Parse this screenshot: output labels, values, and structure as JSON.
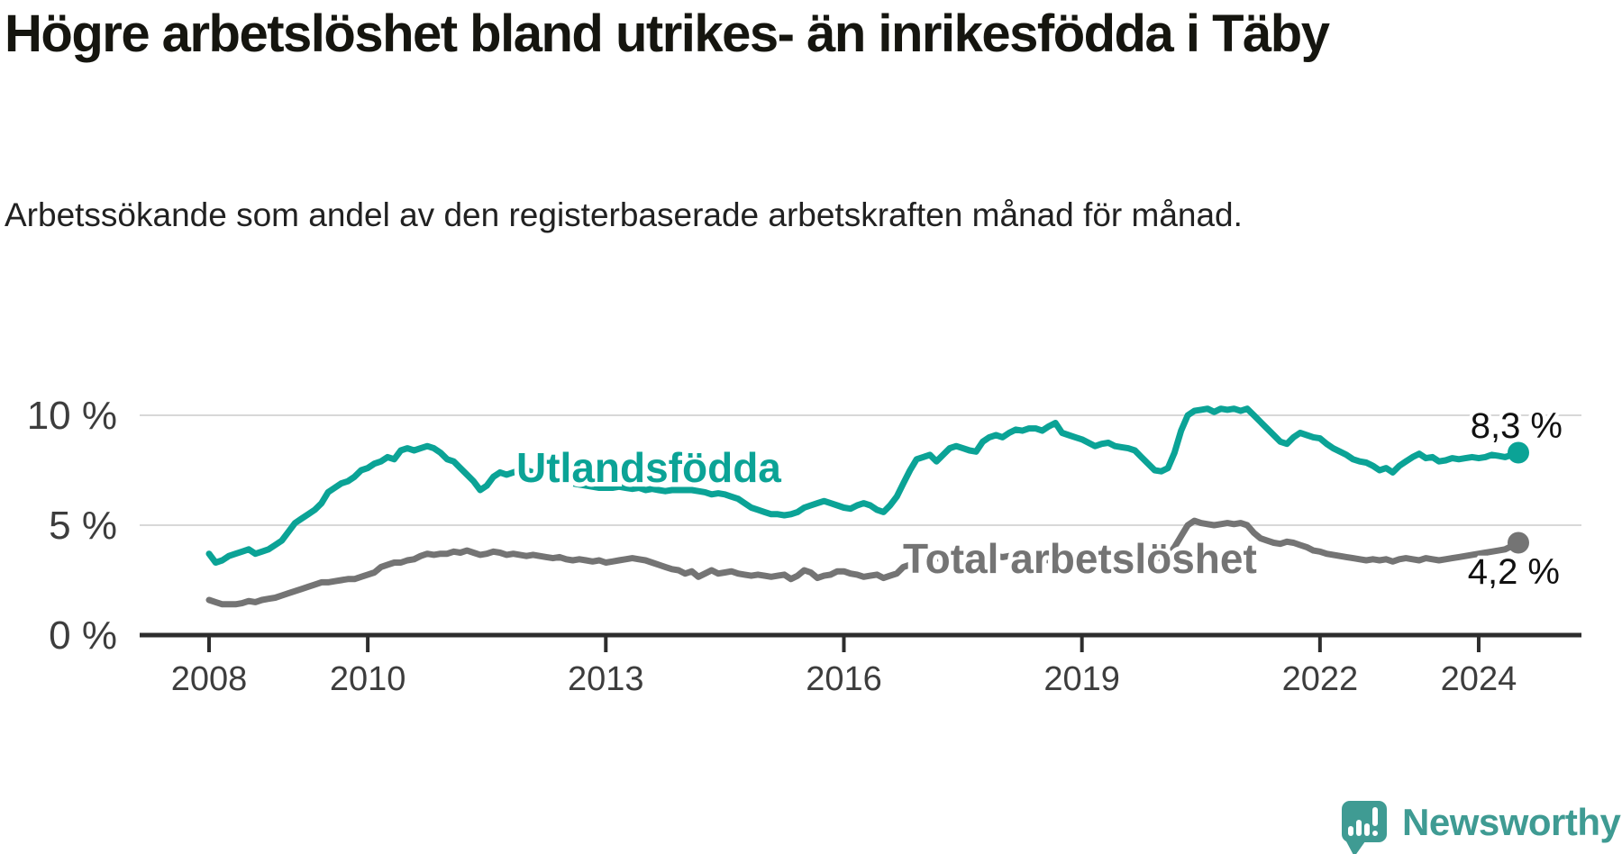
{
  "header": {
    "title": "Högre arbetslöshet bland utrikes- än inrikesfödda i Täby",
    "subtitle": "Arbetssökande som andel av den registerbaserade arbetskraften månad för månad."
  },
  "footer": {
    "brand": "Newsworthy"
  },
  "colors": {
    "foreign_born_line": "#0ba396",
    "total_line": "#747474",
    "axis": "#2d2d2d",
    "gridline": "#d8d8d8",
    "tick_label": "#3d3d3d",
    "value_label": "#111111",
    "logo": "#3f9b93"
  },
  "chart_data": {
    "type": "line",
    "title": "Högre arbetslöshet bland utrikes- än inrikesfödda i Täby",
    "subtitle": "Arbetssökande som andel av den registerbaserade arbetskraften månad för månad.",
    "xlabel": "",
    "ylabel": "",
    "grid": "horizontal",
    "legend_position": "inline",
    "x_start_year": 2008,
    "x_start_month": 1,
    "x_interval": "monthly",
    "x_ticks": [
      {
        "year": 2008,
        "label": "2008"
      },
      {
        "year": 2010,
        "label": "2010"
      },
      {
        "year": 2013,
        "label": "2013"
      },
      {
        "year": 2016,
        "label": "2016"
      },
      {
        "year": 2019,
        "label": "2019"
      },
      {
        "year": 2022,
        "label": "2022"
      },
      {
        "year": 2024,
        "label": "2024"
      }
    ],
    "y_ticks": [
      {
        "value": 0,
        "label": "0 %"
      },
      {
        "value": 5,
        "label": "5 %"
      },
      {
        "value": 10,
        "label": "10 %"
      }
    ],
    "ylim": [
      0,
      13.3
    ],
    "series": [
      {
        "name": "Utlandsfödda",
        "color": "#0ba396",
        "end_label": "8,3 %",
        "end_value": 8.3,
        "values": [
          3.7,
          3.3,
          3.4,
          3.6,
          3.7,
          3.8,
          3.9,
          3.7,
          3.8,
          3.9,
          4.1,
          4.3,
          4.7,
          5.1,
          5.3,
          5.5,
          5.7,
          6.0,
          6.5,
          6.7,
          6.9,
          7.0,
          7.2,
          7.5,
          7.6,
          7.8,
          7.9,
          8.1,
          8.0,
          8.4,
          8.5,
          8.4,
          8.5,
          8.6,
          8.5,
          8.3,
          8.0,
          7.9,
          7.6,
          7.3,
          7.0,
          6.6,
          6.8,
          7.2,
          7.4,
          7.3,
          7.4,
          7.5,
          7.5,
          7.4,
          7.3,
          7.2,
          7.1,
          7.0,
          6.95,
          6.9,
          6.85,
          6.8,
          6.75,
          6.7,
          6.7,
          6.7,
          6.75,
          6.7,
          6.65,
          6.7,
          6.6,
          6.65,
          6.6,
          6.55,
          6.6,
          6.6,
          6.6,
          6.6,
          6.55,
          6.5,
          6.4,
          6.45,
          6.4,
          6.3,
          6.2,
          6.0,
          5.8,
          5.7,
          5.6,
          5.5,
          5.5,
          5.45,
          5.5,
          5.6,
          5.8,
          5.9,
          6.0,
          6.1,
          6.0,
          5.9,
          5.8,
          5.75,
          5.9,
          6.0,
          5.9,
          5.7,
          5.6,
          5.9,
          6.3,
          6.9,
          7.5,
          8.0,
          8.1,
          8.2,
          7.9,
          8.2,
          8.5,
          8.6,
          8.5,
          8.4,
          8.35,
          8.8,
          9.0,
          9.1,
          9.0,
          9.2,
          9.35,
          9.3,
          9.4,
          9.4,
          9.3,
          9.5,
          9.65,
          9.2,
          9.1,
          9.0,
          8.9,
          8.75,
          8.6,
          8.7,
          8.75,
          8.6,
          8.55,
          8.5,
          8.4,
          8.1,
          7.8,
          7.5,
          7.45,
          7.6,
          8.3,
          9.3,
          10.0,
          10.2,
          10.25,
          10.3,
          10.15,
          10.3,
          10.25,
          10.3,
          10.2,
          10.3,
          10.0,
          9.7,
          9.4,
          9.1,
          8.8,
          8.7,
          9.0,
          9.2,
          9.1,
          9.0,
          8.95,
          8.7,
          8.5,
          8.35,
          8.2,
          8.0,
          7.9,
          7.85,
          7.7,
          7.5,
          7.6,
          7.4,
          7.7,
          7.9,
          8.1,
          8.25,
          8.05,
          8.1,
          7.9,
          7.95,
          8.05,
          8.0,
          8.05,
          8.1,
          8.05,
          8.1,
          8.2,
          8.15,
          8.1,
          8.2,
          8.3
        ]
      },
      {
        "name": "Total arbetslöshet",
        "color": "#747474",
        "end_label": "4,2 %",
        "end_value": 4.2,
        "values": [
          1.6,
          1.5,
          1.4,
          1.4,
          1.4,
          1.45,
          1.55,
          1.5,
          1.6,
          1.65,
          1.7,
          1.8,
          1.9,
          2.0,
          2.1,
          2.2,
          2.3,
          2.4,
          2.4,
          2.45,
          2.5,
          2.55,
          2.55,
          2.65,
          2.75,
          2.85,
          3.1,
          3.2,
          3.3,
          3.3,
          3.4,
          3.45,
          3.6,
          3.7,
          3.65,
          3.7,
          3.7,
          3.8,
          3.75,
          3.85,
          3.75,
          3.65,
          3.7,
          3.8,
          3.75,
          3.65,
          3.7,
          3.65,
          3.6,
          3.65,
          3.6,
          3.55,
          3.5,
          3.55,
          3.45,
          3.4,
          3.45,
          3.4,
          3.35,
          3.4,
          3.3,
          3.35,
          3.4,
          3.45,
          3.5,
          3.45,
          3.4,
          3.3,
          3.2,
          3.1,
          3.0,
          2.95,
          2.8,
          2.9,
          2.65,
          2.8,
          2.95,
          2.8,
          2.85,
          2.9,
          2.8,
          2.75,
          2.7,
          2.75,
          2.7,
          2.65,
          2.7,
          2.75,
          2.55,
          2.7,
          2.95,
          2.85,
          2.6,
          2.7,
          2.75,
          2.9,
          2.9,
          2.8,
          2.75,
          2.65,
          2.7,
          2.75,
          2.6,
          2.7,
          2.8,
          3.1,
          3.2,
          3.3,
          3.4,
          3.45,
          3.5,
          3.45,
          3.5,
          3.5,
          3.45,
          3.4,
          3.45,
          3.5,
          3.55,
          3.6,
          3.55,
          3.6,
          3.55,
          3.5,
          3.55,
          3.5,
          3.45,
          3.4,
          3.5,
          3.55,
          3.6,
          3.65,
          3.6,
          3.55,
          3.6,
          3.65,
          3.6,
          3.55,
          3.6,
          3.55,
          3.5,
          3.45,
          3.4,
          3.5,
          3.5,
          3.6,
          4.0,
          4.5,
          5.0,
          5.2,
          5.1,
          5.05,
          5.0,
          5.05,
          5.1,
          5.05,
          5.1,
          5.0,
          4.65,
          4.4,
          4.3,
          4.2,
          4.15,
          4.25,
          4.2,
          4.1,
          4.0,
          3.85,
          3.8,
          3.7,
          3.65,
          3.6,
          3.55,
          3.5,
          3.45,
          3.4,
          3.45,
          3.4,
          3.45,
          3.35,
          3.45,
          3.5,
          3.45,
          3.4,
          3.5,
          3.45,
          3.4,
          3.45,
          3.5,
          3.55,
          3.6,
          3.65,
          3.7,
          3.75,
          3.8,
          3.85,
          3.9,
          4.05,
          4.2
        ]
      }
    ]
  }
}
